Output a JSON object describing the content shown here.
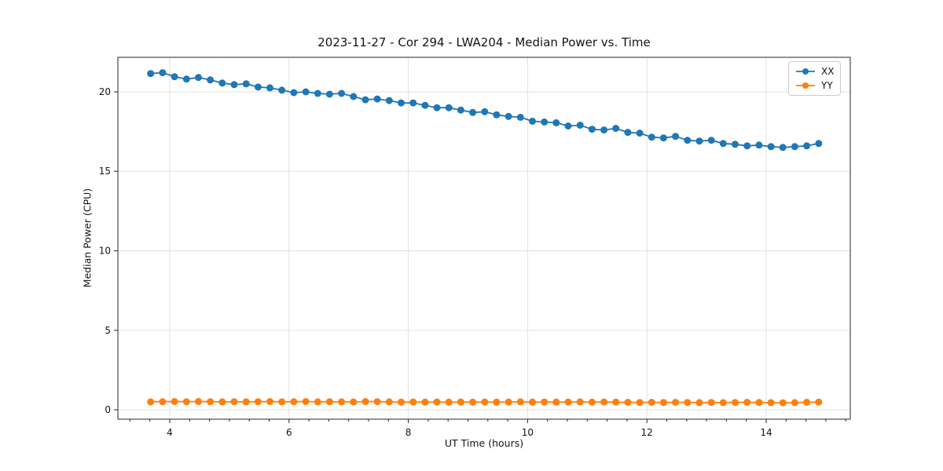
{
  "chart_data": {
    "type": "line",
    "title": "2023-11-27 - Cor 294 - LWA204 - Median Power vs. Time",
    "xlabel": "UT Time (hours)",
    "ylabel": "Median Power (CPU)",
    "xlim": [
      3.13,
      15.41
    ],
    "ylim": [
      -0.59,
      22.17
    ],
    "xticks": [
      4,
      6,
      8,
      10,
      12,
      14
    ],
    "yticks": [
      0,
      5,
      10,
      15,
      20
    ],
    "minor_xtick_step": 0.3333,
    "grid": true,
    "background": "#ffffff",
    "grid_color": "#e2e2e2",
    "spine_color": "#262626",
    "legend": {
      "position": "upper right",
      "entries": [
        "XX",
        "YY"
      ]
    },
    "x": [
      3.68,
      3.88,
      4.08,
      4.28,
      4.48,
      4.68,
      4.88,
      5.08,
      5.28,
      5.48,
      5.68,
      5.88,
      6.08,
      6.28,
      6.48,
      6.68,
      6.88,
      7.08,
      7.28,
      7.48,
      7.68,
      7.88,
      8.08,
      8.28,
      8.48,
      8.68,
      8.88,
      9.08,
      9.28,
      9.48,
      9.68,
      9.88,
      10.08,
      10.28,
      10.48,
      10.68,
      10.88,
      11.08,
      11.28,
      11.48,
      11.68,
      11.88,
      12.08,
      12.28,
      12.48,
      12.68,
      12.88,
      13.08,
      13.28,
      13.48,
      13.68,
      13.88,
      14.08,
      14.28,
      14.48,
      14.68,
      14.88
    ],
    "series": [
      {
        "name": "XX",
        "color": "#1f77b4",
        "values": [
          21.15,
          21.2,
          20.95,
          20.8,
          20.9,
          20.75,
          20.55,
          20.45,
          20.5,
          20.3,
          20.25,
          20.1,
          19.95,
          20.0,
          19.9,
          19.85,
          19.9,
          19.7,
          19.5,
          19.55,
          19.45,
          19.3,
          19.3,
          19.15,
          19.0,
          19.0,
          18.85,
          18.7,
          18.75,
          18.55,
          18.45,
          18.4,
          18.15,
          18.1,
          18.05,
          17.85,
          17.9,
          17.65,
          17.6,
          17.7,
          17.45,
          17.4,
          17.15,
          17.1,
          17.2,
          16.95,
          16.9,
          16.95,
          16.75,
          16.7,
          16.6,
          16.65,
          16.55,
          16.5,
          16.55,
          16.6,
          16.75
        ]
      },
      {
        "name": "YY",
        "color": "#ff7f0e",
        "values": [
          0.5,
          0.51,
          0.52,
          0.51,
          0.52,
          0.51,
          0.5,
          0.51,
          0.5,
          0.51,
          0.52,
          0.5,
          0.51,
          0.52,
          0.5,
          0.51,
          0.5,
          0.49,
          0.52,
          0.51,
          0.5,
          0.48,
          0.49,
          0.48,
          0.49,
          0.48,
          0.49,
          0.48,
          0.49,
          0.48,
          0.49,
          0.5,
          0.48,
          0.49,
          0.48,
          0.49,
          0.5,
          0.48,
          0.49,
          0.48,
          0.47,
          0.46,
          0.47,
          0.46,
          0.47,
          0.46,
          0.45,
          0.46,
          0.45,
          0.46,
          0.47,
          0.46,
          0.45,
          0.44,
          0.45,
          0.47,
          0.48
        ]
      }
    ]
  }
}
